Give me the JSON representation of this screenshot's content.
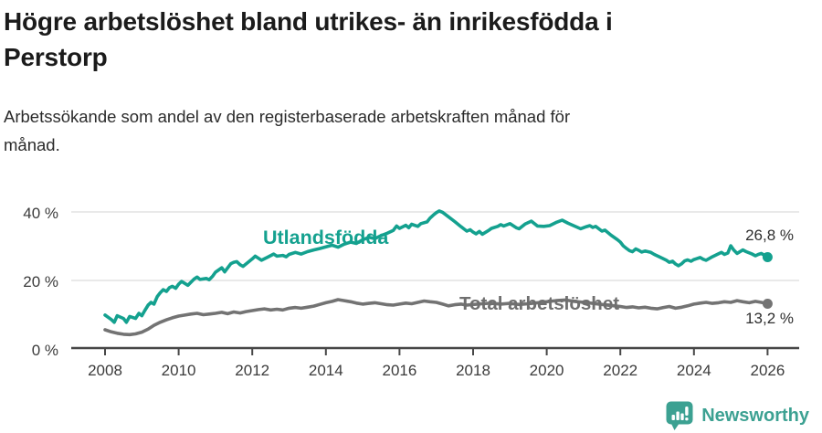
{
  "header": {
    "title_line1": "Högre arbetslöshet bland utrikes- än inrikesfödda i",
    "title_line2": "Perstorp",
    "subtitle_line1": "Arbetssökande som andel av den registerbaserade arbetskraften månad för",
    "subtitle_line2": "månad."
  },
  "footer": {
    "brand": "Newsworthy",
    "brand_color": "#3ca192"
  },
  "chart_data": {
    "type": "line",
    "title": "Högre arbetslöshet bland utrikes- än inrikesfödda i Perstorp",
    "subtitle": "Arbetssökande som andel av den registerbaserade arbetskraften månad för månad.",
    "grid": "horizontal-only",
    "legend_position": "inline-labels",
    "xlim": [
      2007.1,
      2026.9
    ],
    "ylim": [
      0,
      45
    ],
    "x_tick_labels": [
      "2008",
      "2010",
      "2012",
      "2014",
      "2016",
      "2018",
      "2020",
      "2022",
      "2024",
      "2026"
    ],
    "y_tick_labels": [
      "0 %",
      "20 %",
      "40 %"
    ],
    "series": [
      {
        "name": "Utlandsfödda",
        "color": "#14a18f",
        "end_label": "26,8 %",
        "end_value": 26.8,
        "points": [
          [
            2008.0,
            9.9
          ],
          [
            2008.17,
            8.6
          ],
          [
            2008.25,
            7.8
          ],
          [
            2008.33,
            9.7
          ],
          [
            2008.5,
            8.9
          ],
          [
            2008.58,
            7.8
          ],
          [
            2008.67,
            9.5
          ],
          [
            2008.83,
            8.9
          ],
          [
            2008.92,
            10.4
          ],
          [
            2009.0,
            9.7
          ],
          [
            2009.08,
            11.2
          ],
          [
            2009.17,
            12.8
          ],
          [
            2009.25,
            13.6
          ],
          [
            2009.33,
            13.1
          ],
          [
            2009.42,
            15.3
          ],
          [
            2009.5,
            16.4
          ],
          [
            2009.58,
            17.3
          ],
          [
            2009.67,
            16.8
          ],
          [
            2009.75,
            17.9
          ],
          [
            2009.83,
            18.3
          ],
          [
            2009.92,
            17.7
          ],
          [
            2010.0,
            18.9
          ],
          [
            2010.08,
            19.7
          ],
          [
            2010.25,
            18.6
          ],
          [
            2010.42,
            20.4
          ],
          [
            2010.5,
            21.0
          ],
          [
            2010.58,
            20.3
          ],
          [
            2010.75,
            20.6
          ],
          [
            2010.83,
            20.2
          ],
          [
            2010.92,
            21.2
          ],
          [
            2011.0,
            22.4
          ],
          [
            2011.17,
            23.7
          ],
          [
            2011.25,
            22.5
          ],
          [
            2011.42,
            24.9
          ],
          [
            2011.5,
            25.3
          ],
          [
            2011.58,
            25.5
          ],
          [
            2011.67,
            24.6
          ],
          [
            2011.75,
            24.1
          ],
          [
            2011.92,
            25.6
          ],
          [
            2012.0,
            26.3
          ],
          [
            2012.08,
            27.1
          ],
          [
            2012.25,
            25.9
          ],
          [
            2012.42,
            26.8
          ],
          [
            2012.58,
            27.7
          ],
          [
            2012.67,
            27.1
          ],
          [
            2012.83,
            27.3
          ],
          [
            2012.92,
            26.9
          ],
          [
            2013.0,
            27.6
          ],
          [
            2013.17,
            28.2
          ],
          [
            2013.33,
            27.7
          ],
          [
            2013.5,
            28.4
          ],
          [
            2013.67,
            28.9
          ],
          [
            2013.83,
            29.3
          ],
          [
            2014.0,
            29.8
          ],
          [
            2014.17,
            30.3
          ],
          [
            2014.33,
            29.7
          ],
          [
            2014.5,
            30.6
          ],
          [
            2014.67,
            31.2
          ],
          [
            2014.83,
            30.8
          ],
          [
            2015.0,
            31.9
          ],
          [
            2015.17,
            32.6
          ],
          [
            2015.33,
            32.2
          ],
          [
            2015.5,
            33.1
          ],
          [
            2015.67,
            33.8
          ],
          [
            2015.83,
            34.6
          ],
          [
            2015.92,
            35.9
          ],
          [
            2016.0,
            35.2
          ],
          [
            2016.17,
            36.1
          ],
          [
            2016.25,
            35.4
          ],
          [
            2016.33,
            36.4
          ],
          [
            2016.5,
            35.8
          ],
          [
            2016.58,
            36.6
          ],
          [
            2016.75,
            37.1
          ],
          [
            2016.83,
            38.2
          ],
          [
            2016.92,
            39.1
          ],
          [
            2017.0,
            39.8
          ],
          [
            2017.08,
            40.3
          ],
          [
            2017.17,
            39.9
          ],
          [
            2017.33,
            38.6
          ],
          [
            2017.5,
            37.2
          ],
          [
            2017.67,
            35.7
          ],
          [
            2017.83,
            34.4
          ],
          [
            2017.92,
            34.8
          ],
          [
            2018.0,
            34.1
          ],
          [
            2018.08,
            33.6
          ],
          [
            2018.17,
            34.3
          ],
          [
            2018.25,
            33.5
          ],
          [
            2018.42,
            34.6
          ],
          [
            2018.5,
            35.2
          ],
          [
            2018.67,
            35.8
          ],
          [
            2018.75,
            36.3
          ],
          [
            2018.83,
            35.9
          ],
          [
            2019.0,
            36.6
          ],
          [
            2019.17,
            35.4
          ],
          [
            2019.25,
            35.1
          ],
          [
            2019.42,
            36.5
          ],
          [
            2019.58,
            37.3
          ],
          [
            2019.75,
            35.9
          ],
          [
            2019.92,
            35.8
          ],
          [
            2020.08,
            36.0
          ],
          [
            2020.25,
            36.9
          ],
          [
            2020.42,
            37.6
          ],
          [
            2020.58,
            36.7
          ],
          [
            2020.75,
            35.9
          ],
          [
            2020.92,
            35.1
          ],
          [
            2021.08,
            35.7
          ],
          [
            2021.17,
            36.0
          ],
          [
            2021.25,
            35.5
          ],
          [
            2021.33,
            35.8
          ],
          [
            2021.5,
            34.4
          ],
          [
            2021.58,
            34.7
          ],
          [
            2021.75,
            33.2
          ],
          [
            2021.92,
            31.9
          ],
          [
            2022.0,
            31.2
          ],
          [
            2022.08,
            30.1
          ],
          [
            2022.17,
            29.3
          ],
          [
            2022.25,
            28.7
          ],
          [
            2022.33,
            28.4
          ],
          [
            2022.42,
            29.2
          ],
          [
            2022.5,
            28.8
          ],
          [
            2022.58,
            28.3
          ],
          [
            2022.67,
            28.6
          ],
          [
            2022.83,
            28.2
          ],
          [
            2022.92,
            27.6
          ],
          [
            2023.0,
            27.2
          ],
          [
            2023.08,
            26.8
          ],
          [
            2023.25,
            25.9
          ],
          [
            2023.33,
            25.3
          ],
          [
            2023.42,
            25.6
          ],
          [
            2023.5,
            24.8
          ],
          [
            2023.58,
            24.3
          ],
          [
            2023.67,
            24.9
          ],
          [
            2023.75,
            25.7
          ],
          [
            2023.83,
            26.0
          ],
          [
            2023.92,
            25.6
          ],
          [
            2024.0,
            26.1
          ],
          [
            2024.17,
            26.7
          ],
          [
            2024.25,
            26.2
          ],
          [
            2024.33,
            25.9
          ],
          [
            2024.5,
            26.9
          ],
          [
            2024.67,
            27.8
          ],
          [
            2024.75,
            28.2
          ],
          [
            2024.83,
            27.6
          ],
          [
            2024.92,
            28.0
          ],
          [
            2025.0,
            30.1
          ],
          [
            2025.08,
            28.9
          ],
          [
            2025.17,
            27.9
          ],
          [
            2025.33,
            28.9
          ],
          [
            2025.42,
            28.4
          ],
          [
            2025.58,
            27.7
          ],
          [
            2025.67,
            27.2
          ],
          [
            2025.75,
            27.6
          ],
          [
            2025.83,
            27.9
          ],
          [
            2025.92,
            27.3
          ],
          [
            2026.0,
            26.8
          ]
        ]
      },
      {
        "name": "Total arbetslöshet",
        "color": "#737373",
        "end_label": "13,2 %",
        "end_value": 13.2,
        "points": [
          [
            2008.0,
            5.6
          ],
          [
            2008.17,
            5.0
          ],
          [
            2008.33,
            4.6
          ],
          [
            2008.5,
            4.3
          ],
          [
            2008.67,
            4.2
          ],
          [
            2008.83,
            4.4
          ],
          [
            2009.0,
            4.9
          ],
          [
            2009.17,
            5.8
          ],
          [
            2009.33,
            6.9
          ],
          [
            2009.5,
            7.8
          ],
          [
            2009.67,
            8.5
          ],
          [
            2009.83,
            9.1
          ],
          [
            2010.0,
            9.6
          ],
          [
            2010.17,
            9.9
          ],
          [
            2010.33,
            10.2
          ],
          [
            2010.5,
            10.4
          ],
          [
            2010.67,
            10.0
          ],
          [
            2010.83,
            10.2
          ],
          [
            2011.0,
            10.4
          ],
          [
            2011.17,
            10.7
          ],
          [
            2011.33,
            10.3
          ],
          [
            2011.5,
            10.8
          ],
          [
            2011.67,
            10.5
          ],
          [
            2011.83,
            10.9
          ],
          [
            2012.0,
            11.2
          ],
          [
            2012.17,
            11.5
          ],
          [
            2012.33,
            11.7
          ],
          [
            2012.5,
            11.4
          ],
          [
            2012.67,
            11.6
          ],
          [
            2012.83,
            11.4
          ],
          [
            2013.0,
            11.9
          ],
          [
            2013.17,
            12.1
          ],
          [
            2013.33,
            11.9
          ],
          [
            2013.5,
            12.2
          ],
          [
            2013.67,
            12.5
          ],
          [
            2013.83,
            13.0
          ],
          [
            2014.0,
            13.5
          ],
          [
            2014.17,
            13.9
          ],
          [
            2014.33,
            14.4
          ],
          [
            2014.5,
            14.1
          ],
          [
            2014.67,
            13.8
          ],
          [
            2014.83,
            13.4
          ],
          [
            2015.0,
            13.1
          ],
          [
            2015.17,
            13.3
          ],
          [
            2015.33,
            13.5
          ],
          [
            2015.5,
            13.2
          ],
          [
            2015.67,
            12.9
          ],
          [
            2015.83,
            12.8
          ],
          [
            2016.0,
            13.1
          ],
          [
            2016.17,
            13.4
          ],
          [
            2016.33,
            13.2
          ],
          [
            2016.5,
            13.6
          ],
          [
            2016.67,
            14.0
          ],
          [
            2016.83,
            13.8
          ],
          [
            2017.0,
            13.6
          ],
          [
            2017.17,
            13.1
          ],
          [
            2017.33,
            12.6
          ],
          [
            2017.5,
            12.9
          ],
          [
            2017.67,
            13.1
          ],
          [
            2017.83,
            12.8
          ],
          [
            2018.0,
            13.0
          ],
          [
            2018.25,
            13.2
          ],
          [
            2018.5,
            13.4
          ],
          [
            2018.75,
            13.1
          ],
          [
            2019.0,
            13.3
          ],
          [
            2019.25,
            13.0
          ],
          [
            2019.5,
            13.2
          ],
          [
            2019.75,
            13.5
          ],
          [
            2020.0,
            13.8
          ],
          [
            2020.25,
            14.1
          ],
          [
            2020.5,
            14.3
          ],
          [
            2020.75,
            13.9
          ],
          [
            2021.0,
            13.6
          ],
          [
            2021.25,
            13.3
          ],
          [
            2021.5,
            13.0
          ],
          [
            2021.75,
            12.7
          ],
          [
            2022.0,
            12.4
          ],
          [
            2022.17,
            12.1
          ],
          [
            2022.33,
            12.3
          ],
          [
            2022.5,
            12.0
          ],
          [
            2022.67,
            12.2
          ],
          [
            2022.83,
            11.9
          ],
          [
            2023.0,
            11.7
          ],
          [
            2023.17,
            12.1
          ],
          [
            2023.33,
            12.4
          ],
          [
            2023.5,
            11.9
          ],
          [
            2023.67,
            12.2
          ],
          [
            2023.83,
            12.6
          ],
          [
            2024.0,
            13.1
          ],
          [
            2024.17,
            13.4
          ],
          [
            2024.33,
            13.6
          ],
          [
            2024.5,
            13.3
          ],
          [
            2024.67,
            13.5
          ],
          [
            2024.83,
            13.8
          ],
          [
            2025.0,
            13.6
          ],
          [
            2025.17,
            14.1
          ],
          [
            2025.33,
            13.8
          ],
          [
            2025.5,
            13.5
          ],
          [
            2025.67,
            13.9
          ],
          [
            2025.83,
            13.6
          ],
          [
            2026.0,
            13.2
          ]
        ]
      }
    ]
  }
}
